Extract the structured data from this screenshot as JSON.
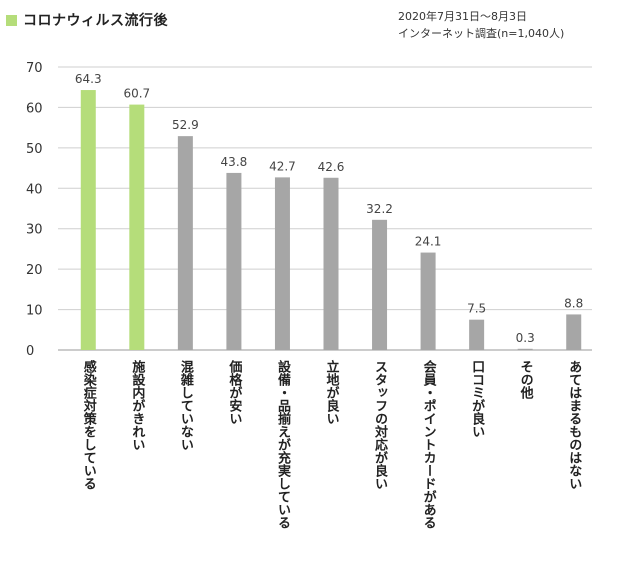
{
  "header": {
    "title": "コロナウィルス流行後",
    "note_date": "2020年7月31日〜8月3日",
    "note_survey": "インターネット調査(n=1,040人)"
  },
  "colors": {
    "highlight": "#b5dd7a",
    "default": "#a6a6a6",
    "grid": "#cfcfcf"
  },
  "chart_data": {
    "type": "bar",
    "title": "コロナウィルス流行後",
    "categories": [
      "感染症対策をしている",
      "施設内がきれい",
      "混雑していない",
      "価格が安い",
      "設備・品揃えが充実している",
      "立地が良い",
      "スタッフの対応が良い",
      "会員・ポイントカードがある",
      "口コミが良い",
      "その他",
      "あてはまるものはない"
    ],
    "values": [
      64.3,
      60.7,
      52.9,
      43.8,
      42.7,
      42.6,
      32.2,
      24.1,
      7.5,
      0.3,
      8.8
    ],
    "value_labels": [
      "64.3",
      "60.7",
      "52.9",
      "43.8",
      "42.7",
      "42.6",
      "32.2",
      "24.1",
      "7.5",
      "0.3",
      "8.8"
    ],
    "highlighted": [
      true,
      true,
      false,
      false,
      false,
      false,
      false,
      false,
      false,
      false,
      false
    ],
    "y_ticks": [
      0,
      10,
      20,
      30,
      40,
      50,
      60,
      70
    ],
    "ylim": [
      0,
      70
    ],
    "grid": true,
    "xlabel": "",
    "ylabel": ""
  }
}
